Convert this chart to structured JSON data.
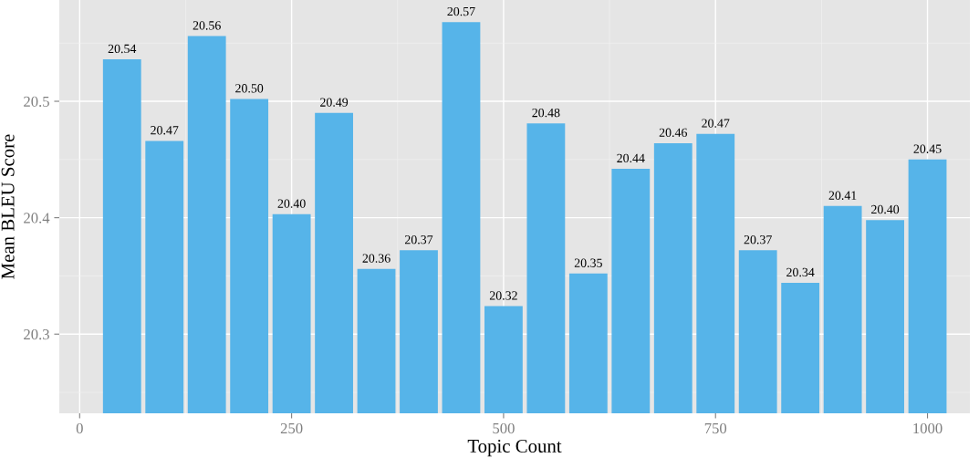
{
  "chart_data": {
    "type": "bar",
    "xlabel": "Topic Count",
    "ylabel": "Mean BLEU Score",
    "x": [
      50,
      100,
      150,
      200,
      250,
      300,
      350,
      400,
      450,
      500,
      550,
      600,
      650,
      700,
      750,
      800,
      850,
      900,
      950,
      1000
    ],
    "values": [
      20.536,
      20.466,
      20.556,
      20.502,
      20.403,
      20.49,
      20.356,
      20.372,
      20.568,
      20.324,
      20.481,
      20.352,
      20.442,
      20.464,
      20.472,
      20.372,
      20.344,
      20.41,
      20.398,
      20.45
    ],
    "value_labels": [
      "20.54",
      "20.47",
      "20.56",
      "20.50",
      "20.40",
      "20.49",
      "20.36",
      "20.37",
      "20.57",
      "20.32",
      "20.48",
      "20.35",
      "20.44",
      "20.46",
      "20.47",
      "20.37",
      "20.34",
      "20.41",
      "20.40",
      "20.45"
    ],
    "color": "#56b4e9",
    "xlim": [
      -24,
      1050
    ],
    "xticks": [
      0,
      250,
      500,
      750,
      1000
    ],
    "ylim": [
      20.232,
      20.587
    ],
    "yticks": [
      20.3,
      20.4,
      20.5
    ],
    "grid": true,
    "legend": false
  }
}
